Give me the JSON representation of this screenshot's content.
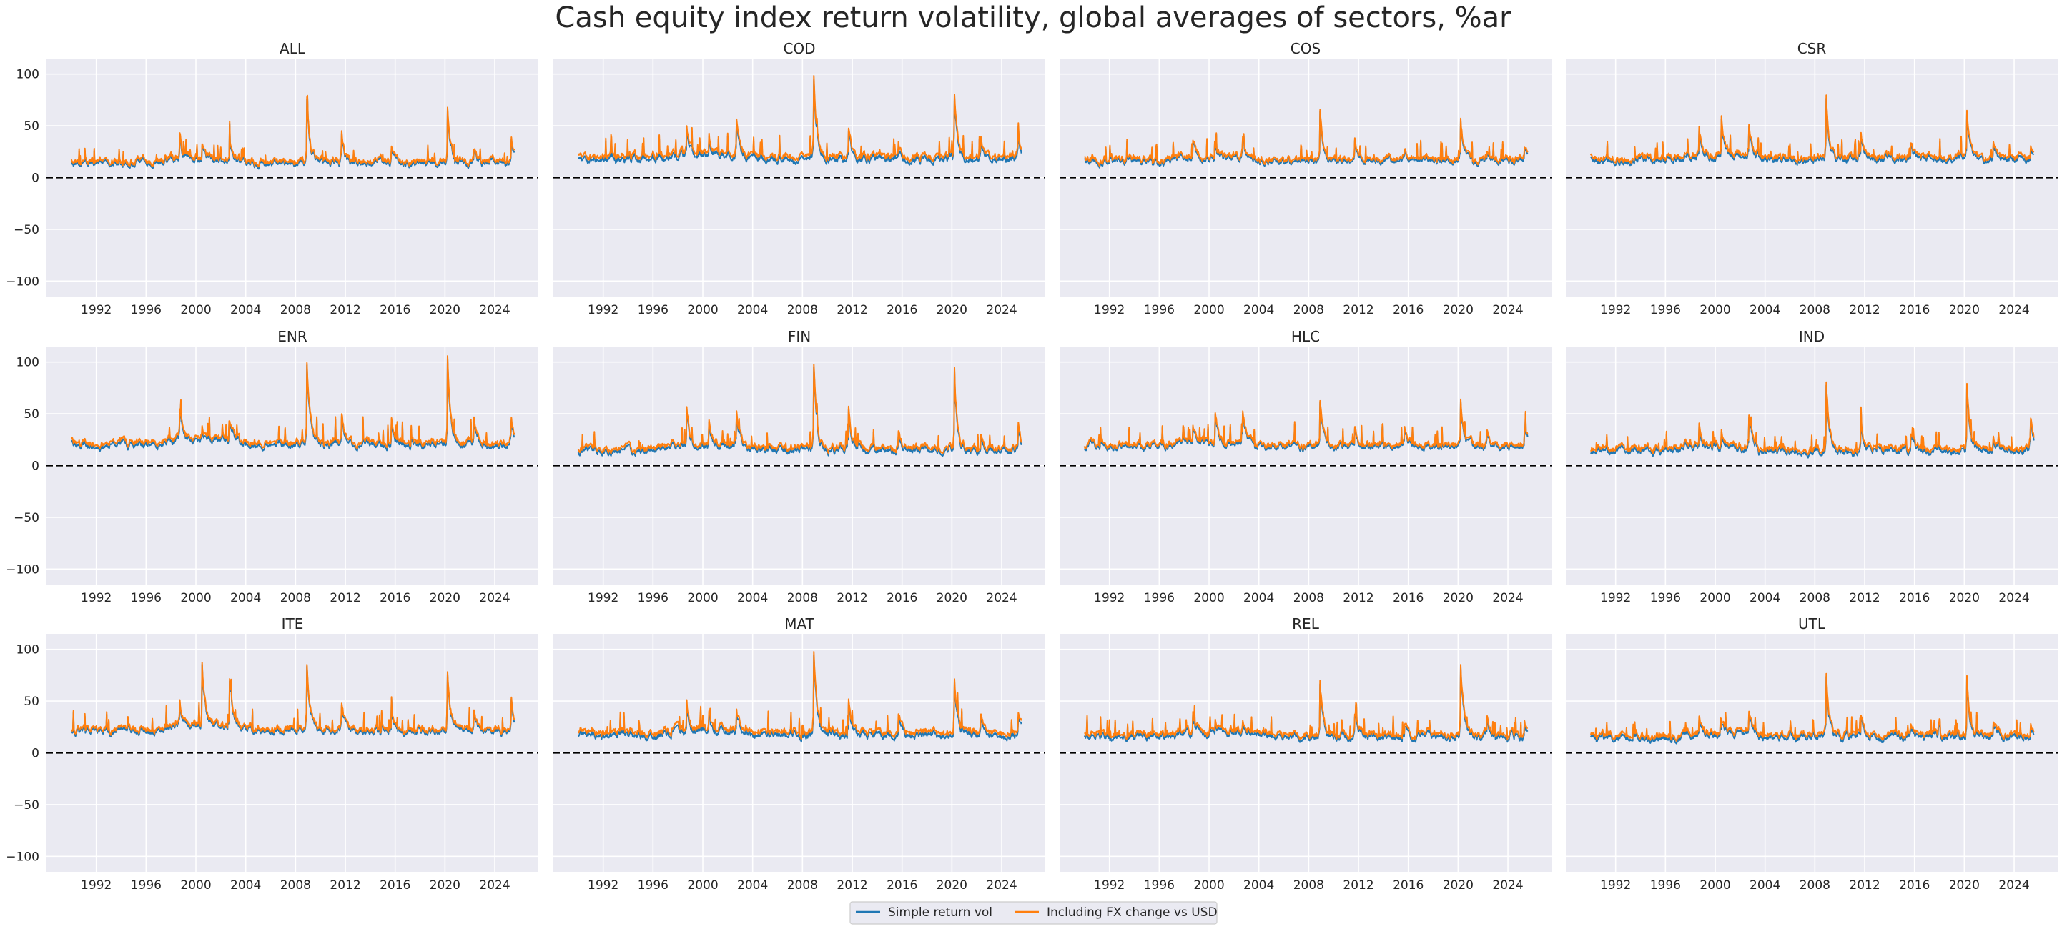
{
  "chart_data": {
    "type": "line",
    "title": "Cash equity index return volatility, global averages of sectors, %ar",
    "ylim": [
      -115,
      115
    ],
    "yticks": [
      -100,
      -50,
      0,
      50,
      100
    ],
    "xlim": [
      1988.0,
      2027.5
    ],
    "xticks": [
      1992,
      1996,
      2000,
      2004,
      2008,
      2012,
      2016,
      2020,
      2024
    ],
    "x_range": [
      1990.0,
      2025.6
    ],
    "zero_line": true,
    "grid": true,
    "legend_position": "bottom-center",
    "series_styles": [
      {
        "name": "Simple return vol",
        "color": "#1f77b4"
      },
      {
        "name": "Including FX change vs USD",
        "color": "#ff7f0e"
      }
    ],
    "panels": [
      {
        "title": "ALL",
        "base": 15,
        "fx_extra": 1.5,
        "events": [
          [
            1998.7,
            38
          ],
          [
            2000.5,
            28
          ],
          [
            2002.7,
            35
          ],
          [
            2008.9,
            80
          ],
          [
            2011.7,
            43
          ],
          [
            2015.7,
            26
          ],
          [
            2020.2,
            70
          ],
          [
            2022.3,
            28
          ],
          [
            2025.3,
            40
          ]
        ]
      },
      {
        "title": "COD",
        "base": 19,
        "fx_extra": 2.5,
        "events": [
          [
            1998.7,
            44
          ],
          [
            2000.5,
            38
          ],
          [
            2002.7,
            48
          ],
          [
            2008.9,
            102
          ],
          [
            2011.7,
            47
          ],
          [
            2015.7,
            32
          ],
          [
            2020.2,
            80
          ],
          [
            2022.3,
            40
          ],
          [
            2025.3,
            44
          ]
        ]
      },
      {
        "title": "COS",
        "base": 17,
        "fx_extra": 1.5,
        "events": [
          [
            1998.7,
            35
          ],
          [
            2000.5,
            30
          ],
          [
            2002.7,
            33
          ],
          [
            2008.9,
            70
          ],
          [
            2011.7,
            37
          ],
          [
            2015.7,
            25
          ],
          [
            2020.2,
            55
          ],
          [
            2022.3,
            27
          ],
          [
            2025.3,
            32
          ]
        ]
      },
      {
        "title": "CSR",
        "base": 18,
        "fx_extra": 2.0,
        "events": [
          [
            1998.7,
            45
          ],
          [
            2000.5,
            55
          ],
          [
            2002.7,
            48
          ],
          [
            2008.9,
            81
          ],
          [
            2011.7,
            40
          ],
          [
            2015.7,
            30
          ],
          [
            2020.2,
            66
          ],
          [
            2022.3,
            33
          ],
          [
            2025.3,
            32
          ]
        ]
      },
      {
        "title": "ENR",
        "base": 21,
        "fx_extra": 2.0,
        "events": [
          [
            1998.7,
            48
          ],
          [
            2000.5,
            35
          ],
          [
            2002.7,
            38
          ],
          [
            2008.9,
            105
          ],
          [
            2011.7,
            50
          ],
          [
            2015.7,
            47
          ],
          [
            2020.2,
            112
          ],
          [
            2022.3,
            48
          ],
          [
            2025.3,
            48
          ]
        ]
      },
      {
        "title": "FIN",
        "base": 16,
        "fx_extra": 2.0,
        "events": [
          [
            1998.7,
            52
          ],
          [
            2000.5,
            40
          ],
          [
            2002.7,
            50
          ],
          [
            2008.9,
            100
          ],
          [
            2011.7,
            55
          ],
          [
            2015.7,
            35
          ],
          [
            2020.2,
            86
          ],
          [
            2022.3,
            32
          ],
          [
            2025.3,
            48
          ]
        ]
      },
      {
        "title": "HLC",
        "base": 19,
        "fx_extra": 1.5,
        "events": [
          [
            1998.7,
            36
          ],
          [
            2000.5,
            48
          ],
          [
            2002.7,
            48
          ],
          [
            2008.9,
            70
          ],
          [
            2011.7,
            38
          ],
          [
            2015.7,
            32
          ],
          [
            2020.2,
            62
          ],
          [
            2022.3,
            33
          ],
          [
            2025.3,
            40
          ]
        ]
      },
      {
        "title": "IND",
        "base": 15,
        "fx_extra": 2.0,
        "events": [
          [
            1998.7,
            40
          ],
          [
            2000.5,
            30
          ],
          [
            2002.7,
            45
          ],
          [
            2008.9,
            84
          ],
          [
            2011.7,
            45
          ],
          [
            2015.7,
            31
          ],
          [
            2020.2,
            80
          ],
          [
            2022.3,
            31
          ],
          [
            2025.3,
            45
          ]
        ]
      },
      {
        "title": "ITE",
        "base": 22,
        "fx_extra": 1.5,
        "events": [
          [
            1998.7,
            45
          ],
          [
            2000.5,
            80
          ],
          [
            2002.7,
            70
          ],
          [
            2008.9,
            88
          ],
          [
            2011.7,
            45
          ],
          [
            2015.7,
            35
          ],
          [
            2020.2,
            82
          ],
          [
            2022.3,
            43
          ],
          [
            2025.3,
            55
          ]
        ]
      },
      {
        "title": "MAT",
        "base": 18,
        "fx_extra": 2.5,
        "events": [
          [
            1998.7,
            45
          ],
          [
            2000.5,
            35
          ],
          [
            2002.7,
            40
          ],
          [
            2008.9,
            103
          ],
          [
            2011.7,
            50
          ],
          [
            2015.7,
            38
          ],
          [
            2020.2,
            72
          ],
          [
            2022.3,
            35
          ],
          [
            2025.3,
            42
          ]
        ]
      },
      {
        "title": "REL",
        "base": 17,
        "fx_extra": 2.0,
        "events": [
          [
            1998.7,
            38
          ],
          [
            2000.5,
            28
          ],
          [
            2002.7,
            30
          ],
          [
            2008.9,
            75
          ],
          [
            2011.7,
            35
          ],
          [
            2015.7,
            28
          ],
          [
            2020.2,
            86
          ],
          [
            2022.3,
            35
          ],
          [
            2025.3,
            35
          ]
        ]
      },
      {
        "title": "UTL",
        "base": 16,
        "fx_extra": 2.0,
        "events": [
          [
            1998.7,
            32
          ],
          [
            2000.5,
            30
          ],
          [
            2002.7,
            32
          ],
          [
            2008.9,
            80
          ],
          [
            2011.7,
            36
          ],
          [
            2015.7,
            26
          ],
          [
            2020.2,
            74
          ],
          [
            2022.3,
            30
          ],
          [
            2025.3,
            33
          ]
        ]
      }
    ]
  },
  "legend": {
    "items": [
      {
        "label": "Simple return vol",
        "color": "#1f77b4"
      },
      {
        "label": "Including FX change vs USD",
        "color": "#ff7f0e"
      }
    ]
  }
}
